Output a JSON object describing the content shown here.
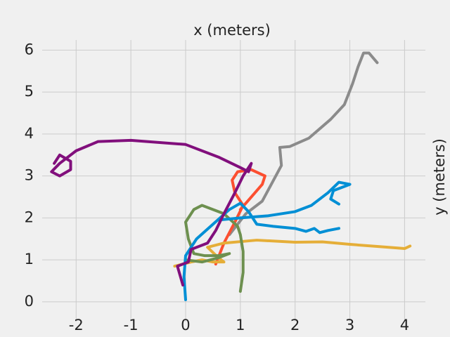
{
  "chart_data": {
    "type": "line",
    "title": "x (meters)",
    "y_label": "y (meters)",
    "xlim": [
      -2.62,
      4.38
    ],
    "ylim": [
      -0.47,
      6.24
    ],
    "xticks": [
      -2,
      -1,
      0,
      1,
      2,
      3,
      4
    ],
    "yticks": [
      0,
      1,
      2,
      3,
      4,
      5,
      6
    ],
    "grid": true,
    "series": [
      {
        "color": "#8b8b8b",
        "x": [
          0.8,
          1.1,
          1.4,
          1.75,
          1.72,
          1.9,
          2.25,
          2.65,
          2.9,
          3.05,
          3.15,
          3.25,
          3.35,
          3.5
        ],
        "values": [
          1.6,
          2.1,
          2.4,
          3.25,
          3.68,
          3.7,
          3.9,
          4.35,
          4.7,
          5.2,
          5.6,
          5.93,
          5.93,
          5.7
        ]
      },
      {
        "color": "#fc4f30",
        "x": [
          0.55,
          0.7,
          0.9,
          1.05,
          0.9,
          0.85,
          0.95,
          1.2,
          1.45,
          1.4,
          1.2,
          1.0
        ],
        "values": [
          0.9,
          1.4,
          1.9,
          2.3,
          2.6,
          2.9,
          3.1,
          3.15,
          3.0,
          2.8,
          2.5,
          2.2
        ]
      },
      {
        "color": "#e5ae38",
        "x": [
          -0.2,
          0.1,
          0.3,
          0.5,
          0.7,
          0.6,
          0.4,
          0.7,
          1.3,
          2.0,
          2.5,
          3.0,
          3.5,
          4.0,
          4.1
        ],
        "values": [
          0.85,
          0.95,
          1.0,
          0.95,
          0.95,
          1.05,
          1.3,
          1.4,
          1.47,
          1.42,
          1.43,
          1.37,
          1.32,
          1.27,
          1.33
        ]
      },
      {
        "color": "#6d904f",
        "x": [
          1.0,
          1.05,
          1.05,
          1.0,
          0.95,
          0.7,
          0.3,
          0.15,
          0.0,
          0.05,
          0.15,
          0.35,
          0.6,
          0.8,
          0.6,
          0.3,
          0.0
        ],
        "values": [
          0.25,
          0.7,
          1.2,
          1.6,
          1.8,
          2.1,
          2.3,
          2.2,
          1.9,
          1.5,
          1.15,
          1.1,
          1.1,
          1.15,
          1.05,
          0.95,
          1.0
        ]
      },
      {
        "color": "#008fd5",
        "x": [
          0.0,
          -0.03,
          0.0,
          0.2,
          0.5,
          0.8,
          1.0,
          1.15,
          1.3,
          1.6,
          2.0,
          2.2,
          2.35,
          2.45,
          2.6,
          2.8
        ],
        "values": [
          0.05,
          0.6,
          1.1,
          1.5,
          1.85,
          2.2,
          2.35,
          2.15,
          1.85,
          1.8,
          1.75,
          1.68,
          1.75,
          1.65,
          1.7,
          1.75
        ]
      },
      {
        "color": "#008fd5",
        "x": [
          0.6,
          1.0,
          1.5,
          2.0,
          2.3,
          2.6,
          2.8,
          3.0,
          2.7,
          2.65,
          2.8
        ],
        "values": [
          1.95,
          2.0,
          2.05,
          2.15,
          2.3,
          2.6,
          2.85,
          2.8,
          2.65,
          2.45,
          2.33
        ]
      },
      {
        "color": "#810f7c",
        "x": [
          -0.05,
          -0.15,
          0.05,
          0.1,
          0.4,
          0.55,
          0.7,
          0.9,
          1.05,
          1.2,
          1.15,
          1.0,
          0.6,
          0.0,
          -1.0,
          -1.6,
          -2.0,
          -2.3,
          -2.45,
          -2.3,
          -2.1,
          -2.1,
          -2.3,
          -2.4
        ],
        "values": [
          0.4,
          0.85,
          0.95,
          1.25,
          1.4,
          1.7,
          2.1,
          2.6,
          3.0,
          3.3,
          3.1,
          3.2,
          3.45,
          3.75,
          3.85,
          3.82,
          3.6,
          3.3,
          3.1,
          3.0,
          3.15,
          3.35,
          3.5,
          3.3
        ]
      }
    ]
  }
}
